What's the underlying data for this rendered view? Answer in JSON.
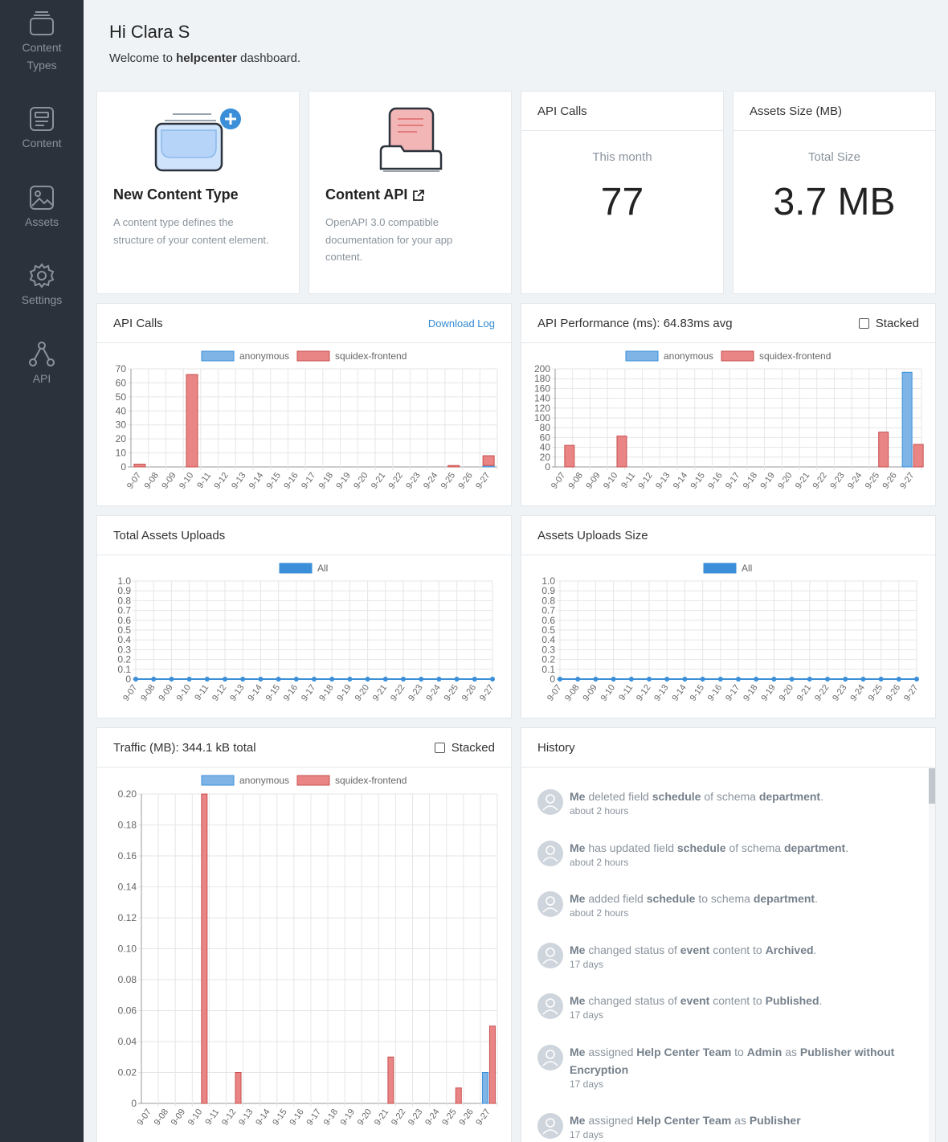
{
  "sidebar": {
    "items": [
      {
        "label_line1": "Content",
        "label_line2": "Types",
        "icon": "schema-icon"
      },
      {
        "label_line1": "Content",
        "label_line2": "",
        "icon": "content-icon"
      },
      {
        "label_line1": "Assets",
        "label_line2": "",
        "icon": "assets-icon"
      },
      {
        "label_line1": "Settings",
        "label_line2": "",
        "icon": "settings-icon"
      },
      {
        "label_line1": "API",
        "label_line2": "",
        "icon": "api-icon"
      }
    ]
  },
  "header": {
    "greeting": "Hi Clara S",
    "welcome_prefix": "Welcome to ",
    "app_name": "helpcenter",
    "welcome_suffix": " dashboard."
  },
  "cards": {
    "new_content_type": {
      "title": "New Content Type",
      "description": "A content type defines the structure of your content element."
    },
    "content_api": {
      "title": "Content API",
      "description": "OpenAPI 3.0 compatible documentation for your app content."
    },
    "api_calls_stat": {
      "title": "API Calls",
      "subtitle": "This month",
      "value": "77"
    },
    "assets_size_stat": {
      "title": "Assets Size (MB)",
      "subtitle": "Total Size",
      "value": "3.7 MB"
    }
  },
  "panels": {
    "api_calls": {
      "title": "API Calls",
      "link": "Download Log"
    },
    "api_performance": {
      "title": "API Performance (ms): 64.83ms avg",
      "stacked_label": "Stacked"
    },
    "total_assets_uploads": {
      "title": "Total Assets Uploads"
    },
    "assets_uploads_size": {
      "title": "Assets Uploads Size"
    },
    "traffic": {
      "title": "Traffic (MB): 344.1 kB total",
      "stacked_label": "Stacked"
    },
    "history": {
      "title": "History"
    }
  },
  "history": [
    {
      "parts": [
        [
          "b",
          "Me"
        ],
        [
          "t",
          " deleted field "
        ],
        [
          "b",
          "schedule"
        ],
        [
          "t",
          " of schema "
        ],
        [
          "b",
          "department"
        ],
        [
          "t",
          "."
        ]
      ],
      "time": "about 2 hours"
    },
    {
      "parts": [
        [
          "b",
          "Me"
        ],
        [
          "t",
          " has updated field "
        ],
        [
          "b",
          "schedule"
        ],
        [
          "t",
          " of schema "
        ],
        [
          "b",
          "department"
        ],
        [
          "t",
          "."
        ]
      ],
      "time": "about 2 hours"
    },
    {
      "parts": [
        [
          "b",
          "Me"
        ],
        [
          "t",
          " added field "
        ],
        [
          "b",
          "schedule"
        ],
        [
          "t",
          " to schema "
        ],
        [
          "b",
          "department"
        ],
        [
          "t",
          "."
        ]
      ],
      "time": "about 2 hours"
    },
    {
      "parts": [
        [
          "b",
          "Me"
        ],
        [
          "t",
          " changed status of "
        ],
        [
          "b",
          "event"
        ],
        [
          "t",
          " content to "
        ],
        [
          "b",
          "Archived"
        ],
        [
          "t",
          "."
        ]
      ],
      "time": "17 days"
    },
    {
      "parts": [
        [
          "b",
          "Me"
        ],
        [
          "t",
          " changed status of "
        ],
        [
          "b",
          "event"
        ],
        [
          "t",
          " content to "
        ],
        [
          "b",
          "Published"
        ],
        [
          "t",
          "."
        ]
      ],
      "time": "17 days"
    },
    {
      "parts": [
        [
          "b",
          "Me"
        ],
        [
          "t",
          " assigned "
        ],
        [
          "b",
          "Help Center Team"
        ],
        [
          "t",
          " to "
        ],
        [
          "b",
          "Admin"
        ],
        [
          "t",
          " as "
        ],
        [
          "b",
          "Publisher without Encryption"
        ]
      ],
      "time": "17 days"
    },
    {
      "parts": [
        [
          "b",
          "Me"
        ],
        [
          "t",
          " assigned "
        ],
        [
          "b",
          "Help Center Team"
        ],
        [
          "t",
          " as "
        ],
        [
          "b",
          "Publisher"
        ]
      ],
      "time": "17 days"
    }
  ],
  "colors": {
    "anonymous": "#7fb5e6",
    "anonymous_border": "#3a8fd8",
    "frontend": "#e98585",
    "frontend_border": "#c84f4f",
    "all": "#3a8fd8"
  },
  "chart_data": [
    {
      "id": "api_calls",
      "type": "bar",
      "categories": [
        "9-07",
        "9-08",
        "9-09",
        "9-10",
        "9-11",
        "9-12",
        "9-13",
        "9-14",
        "9-15",
        "9-16",
        "9-17",
        "9-18",
        "9-19",
        "9-20",
        "9-21",
        "9-22",
        "9-23",
        "9-24",
        "9-25",
        "9-26",
        "9-27"
      ],
      "series": [
        {
          "name": "anonymous",
          "values": [
            0,
            0,
            0,
            0,
            0,
            0,
            0,
            0,
            0,
            0,
            0,
            0,
            0,
            0,
            0,
            0,
            0,
            0,
            0,
            0,
            1
          ]
        },
        {
          "name": "squidex-frontend",
          "values": [
            2,
            0,
            0,
            66,
            0,
            0,
            0,
            0,
            0,
            0,
            0,
            0,
            0,
            0,
            0,
            0,
            0,
            0,
            1,
            0,
            7
          ]
        }
      ],
      "stacked": true,
      "yticks": [
        "70",
        "60",
        "50",
        "40",
        "30",
        "20",
        "10",
        "0"
      ],
      "ylim": [
        0,
        70
      ]
    },
    {
      "id": "api_performance",
      "type": "bar",
      "categories": [
        "9-07",
        "9-08",
        "9-09",
        "9-10",
        "9-11",
        "9-12",
        "9-13",
        "9-14",
        "9-15",
        "9-16",
        "9-17",
        "9-18",
        "9-19",
        "9-20",
        "9-21",
        "9-22",
        "9-23",
        "9-24",
        "9-25",
        "9-26",
        "9-27"
      ],
      "series": [
        {
          "name": "anonymous",
          "values": [
            0,
            0,
            0,
            0,
            0,
            0,
            0,
            0,
            0,
            0,
            0,
            0,
            0,
            0,
            0,
            0,
            0,
            0,
            0,
            0,
            193
          ]
        },
        {
          "name": "squidex-frontend",
          "values": [
            44,
            0,
            0,
            63,
            0,
            0,
            0,
            0,
            0,
            0,
            0,
            0,
            0,
            0,
            0,
            0,
            0,
            0,
            71,
            0,
            46
          ]
        }
      ],
      "stacked": false,
      "yticks": [
        "200",
        "180",
        "160",
        "140",
        "120",
        "100",
        "80",
        "60",
        "40",
        "20",
        "0"
      ],
      "ylim": [
        0,
        200
      ]
    },
    {
      "id": "total_assets_uploads",
      "type": "line",
      "categories": [
        "9-07",
        "9-08",
        "9-09",
        "9-10",
        "9-11",
        "9-12",
        "9-13",
        "9-14",
        "9-15",
        "9-16",
        "9-17",
        "9-18",
        "9-19",
        "9-20",
        "9-21",
        "9-22",
        "9-23",
        "9-24",
        "9-25",
        "9-26",
        "9-27"
      ],
      "series": [
        {
          "name": "All",
          "values": [
            0,
            0,
            0,
            0,
            0,
            0,
            0,
            0,
            0,
            0,
            0,
            0,
            0,
            0,
            0,
            0,
            0,
            0,
            0,
            0,
            0
          ]
        }
      ],
      "yticks": [
        "1.0",
        "0.9",
        "0.8",
        "0.7",
        "0.6",
        "0.5",
        "0.4",
        "0.3",
        "0.2",
        "0.1",
        "0"
      ],
      "ylim": [
        0,
        1
      ]
    },
    {
      "id": "assets_uploads_size",
      "type": "line",
      "categories": [
        "9-07",
        "9-08",
        "9-09",
        "9-10",
        "9-11",
        "9-12",
        "9-13",
        "9-14",
        "9-15",
        "9-16",
        "9-17",
        "9-18",
        "9-19",
        "9-20",
        "9-21",
        "9-22",
        "9-23",
        "9-24",
        "9-25",
        "9-26",
        "9-27"
      ],
      "series": [
        {
          "name": "All",
          "values": [
            0,
            0,
            0,
            0,
            0,
            0,
            0,
            0,
            0,
            0,
            0,
            0,
            0,
            0,
            0,
            0,
            0,
            0,
            0,
            0,
            0
          ]
        }
      ],
      "yticks": [
        "1.0",
        "0.9",
        "0.8",
        "0.7",
        "0.6",
        "0.5",
        "0.4",
        "0.3",
        "0.2",
        "0.1",
        "0"
      ],
      "ylim": [
        0,
        1
      ]
    },
    {
      "id": "traffic",
      "type": "bar",
      "categories": [
        "9-07",
        "9-08",
        "9-09",
        "9-10",
        "9-11",
        "9-12",
        "9-13",
        "9-14",
        "9-15",
        "9-16",
        "9-17",
        "9-18",
        "9-19",
        "9-20",
        "9-21",
        "9-22",
        "9-23",
        "9-24",
        "9-25",
        "9-26",
        "9-27"
      ],
      "series": [
        {
          "name": "anonymous",
          "values": [
            0,
            0,
            0,
            0,
            0,
            0,
            0,
            0,
            0,
            0,
            0,
            0,
            0,
            0,
            0,
            0,
            0,
            0,
            0,
            0,
            0.02
          ]
        },
        {
          "name": "squidex-frontend",
          "values": [
            0,
            0,
            0,
            0.2,
            0,
            0.02,
            0,
            0,
            0,
            0,
            0,
            0,
            0,
            0,
            0.03,
            0,
            0,
            0,
            0.01,
            0,
            0.05
          ]
        }
      ],
      "stacked": false,
      "yticks": [
        "0.20",
        "0.18",
        "0.16",
        "0.14",
        "0.12",
        "0.10",
        "0.08",
        "0.06",
        "0.04",
        "0.02",
        "0"
      ],
      "ylim": [
        0,
        0.2
      ]
    }
  ]
}
